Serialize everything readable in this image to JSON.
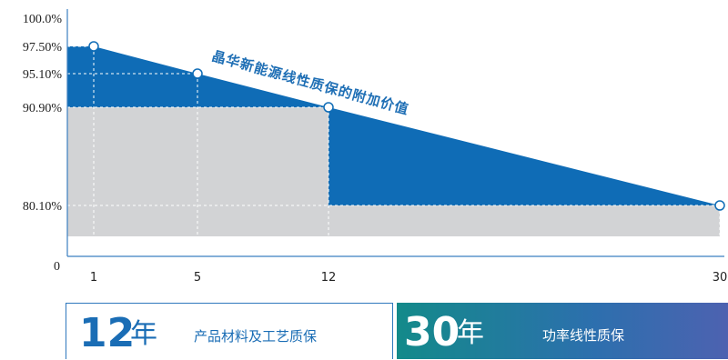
{
  "chart_data": {
    "type": "area",
    "x": [
      0,
      1,
      5,
      12,
      30
    ],
    "xticks": [
      "1",
      "5",
      "12",
      "30"
    ],
    "y_annotated": [
      {
        "x": 1,
        "y": 97.5
      },
      {
        "x": 5,
        "y": 95.1
      },
      {
        "x": 12,
        "y": 90.9
      },
      {
        "x": 30,
        "y": 80.1
      }
    ],
    "series": [
      {
        "name": "",
        "color": "#0f6cb6",
        "points": [
          [
            0,
            97.5
          ],
          [
            1,
            97.5
          ],
          [
            5,
            95.1
          ],
          [
            12,
            90.9
          ],
          [
            30,
            80.1
          ]
        ]
      },
      {
        "name": "",
        "color": "#d2d3d5",
        "points": [
          [
            0,
            90.9
          ],
          [
            12,
            90.9
          ],
          [
            12,
            80.1
          ],
          [
            30,
            80.1
          ]
        ]
      }
    ],
    "yticks": [
      "100.0%",
      "97.50%",
      "95.10%",
      "90.90%",
      "80.10%",
      "0"
    ],
    "ylim": [
      0,
      100
    ],
    "xlim": [
      0,
      30
    ],
    "grid": false,
    "annotation": "晶华新能源线性质保的附加价值",
    "title": "",
    "xlabel": "",
    "ylabel": ""
  },
  "cards": [
    {
      "number": "12",
      "unit": "年",
      "label": "产品材料及工艺质保"
    },
    {
      "number": "30",
      "unit": "年",
      "label": "功率线性质保"
    }
  ],
  "colors": {
    "blue": "#0f6cb6",
    "gray": "#d2d3d5",
    "accent": "#1f6fb5"
  }
}
